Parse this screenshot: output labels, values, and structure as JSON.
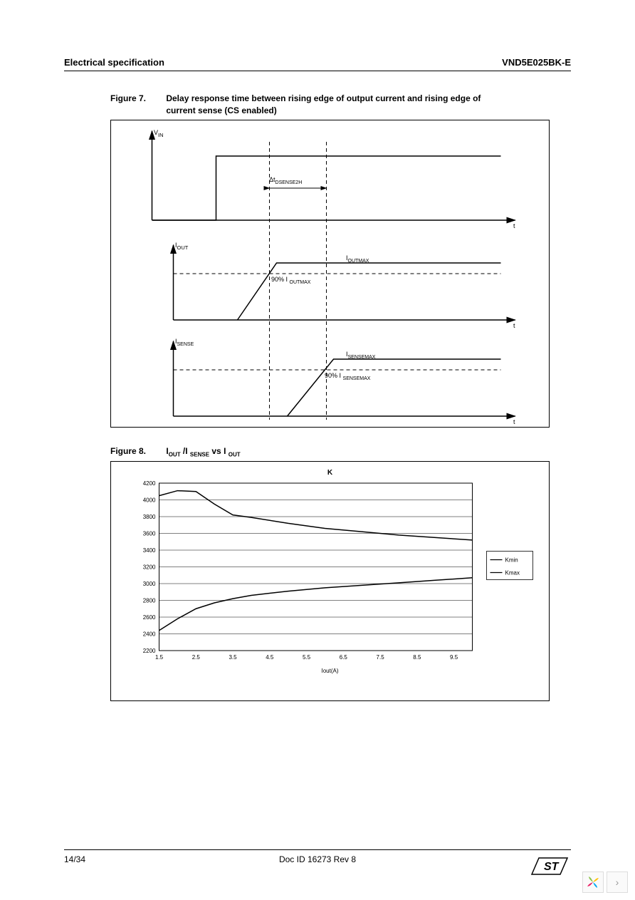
{
  "header": {
    "left": "Electrical specification",
    "right": "VND5E025BK-E"
  },
  "figure7": {
    "number": "Figure 7.",
    "title": "Delay response time between rising edge of output current and rising edge of current sense (CS enabled)",
    "labels": {
      "vin": "V",
      "vin_sub": "IN",
      "iout": "I",
      "iout_sub": "OUT",
      "isense": "I",
      "isense_sub": "SENSE",
      "t": "t",
      "delta": "Δt",
      "delta_sub": "DSENSE2H",
      "ioutmax": "I",
      "ioutmax_sub": "OUTMAX",
      "pct_iout": "90% I",
      "pct_iout_sub": "OUTMAX",
      "isensemax": "I",
      "isensemax_sub": "SENSEMAX",
      "pct_isense": "90% I",
      "pct_isense_sub": "SENSEMAX"
    }
  },
  "figure8": {
    "number": "Figure 8.",
    "title_parts": {
      "i1": "I",
      "out1": "OUT",
      "slash": " /I ",
      "sense": "SENSE",
      "vs": "  vs I ",
      "out2": "OUT"
    },
    "chart_title": "K",
    "x_label": "Iout(A)",
    "y_ticks": [
      2200,
      2400,
      2600,
      2800,
      3000,
      3200,
      3400,
      3600,
      3800,
      4000,
      4200
    ],
    "x_ticks": [
      1.5,
      2.5,
      3.5,
      4.5,
      5.5,
      6.5,
      7.5,
      8.5,
      9.5
    ],
    "ylim": [
      2200,
      4200
    ],
    "xlim": [
      1.5,
      10
    ],
    "legend": [
      "Kmin",
      "Kmax"
    ],
    "kmax_series": [
      {
        "x": 1.5,
        "y": 4050
      },
      {
        "x": 2.0,
        "y": 4110
      },
      {
        "x": 2.5,
        "y": 4100
      },
      {
        "x": 3.0,
        "y": 3950
      },
      {
        "x": 3.5,
        "y": 3820
      },
      {
        "x": 4.0,
        "y": 3790
      },
      {
        "x": 5.0,
        "y": 3720
      },
      {
        "x": 6.0,
        "y": 3660
      },
      {
        "x": 7.0,
        "y": 3620
      },
      {
        "x": 8.0,
        "y": 3580
      },
      {
        "x": 9.0,
        "y": 3550
      },
      {
        "x": 10.0,
        "y": 3520
      }
    ],
    "kmin_series": [
      {
        "x": 1.5,
        "y": 2440
      },
      {
        "x": 2.0,
        "y": 2580
      },
      {
        "x": 2.5,
        "y": 2700
      },
      {
        "x": 3.0,
        "y": 2770
      },
      {
        "x": 3.5,
        "y": 2820
      },
      {
        "x": 4.0,
        "y": 2860
      },
      {
        "x": 5.0,
        "y": 2910
      },
      {
        "x": 6.0,
        "y": 2950
      },
      {
        "x": 7.0,
        "y": 2980
      },
      {
        "x": 8.0,
        "y": 3010
      },
      {
        "x": 9.0,
        "y": 3040
      },
      {
        "x": 10.0,
        "y": 3070
      }
    ],
    "colors": {
      "axis": "#000000",
      "grid": "#000000",
      "line": "#000000",
      "bg": "#ffffff"
    },
    "line_width": 1.5
  },
  "footer": {
    "page": "14/34",
    "docid": "Doc ID 16273 Rev 8"
  }
}
